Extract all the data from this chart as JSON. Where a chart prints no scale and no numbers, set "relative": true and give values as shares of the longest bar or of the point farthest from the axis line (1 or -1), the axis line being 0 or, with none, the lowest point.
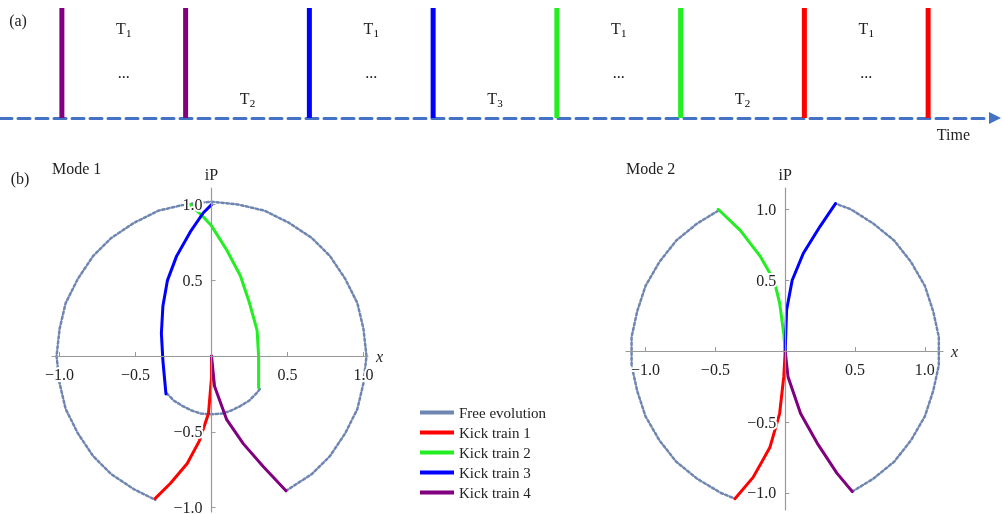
{
  "chart_data": [
    {
      "type": "bar",
      "relative": true,
      "xlabel": "Time",
      "categories": [
        null,
        null,
        null,
        null,
        null,
        null,
        null,
        null
      ],
      "values": [
        1,
        1,
        1,
        1,
        1,
        1,
        1,
        1
      ],
      "colors": [
        "#800080",
        "#800080",
        "#0000ff",
        "#0000ff",
        "#22ee22",
        "#22ee22",
        "#ff0000",
        "#ff0000"
      ],
      "annotations": [
        "(a)",
        "T$_{1}$",
        "...",
        "T$_{2}$",
        "T$_{1}$",
        "...",
        "T$_{3}$",
        "T$_{1}$",
        "...",
        "T$_{2}$",
        "T$_{1}$",
        "..."
      ]
    },
    {
      "type": "line",
      "title": "Mode 1",
      "xlabel": "x",
      "ylabel": "iP",
      "annotations": [
        "(b)"
      ],
      "xlim": [
        -1.05,
        1.03
      ],
      "ylim": [
        -1.03,
        1.11
      ],
      "xticks": [
        {
          "value": -1,
          "label": "−1.0"
        },
        {
          "value": -0.5,
          "label": "−0.5"
        },
        {
          "value": 0.5,
          "label": "0.5"
        },
        {
          "value": 1,
          "label": "1.0"
        }
      ],
      "yticks": [
        {
          "value": -1,
          "label": "−1.0"
        },
        {
          "value": -0.5,
          "label": "−0.5"
        },
        {
          "value": 0.5,
          "label": "0.5"
        },
        {
          "value": 1,
          "label": "1.0"
        }
      ],
      "grid": false,
      "legend": "bottom right",
      "series": [
        {
          "name": "Free evolution",
          "color": "#6f86b0",
          "line_style": "dotted",
          "x": [
            0.49,
            0.66,
            0.78,
            0.88,
            0.96,
            1.0,
            1.02,
            1.0,
            0.96,
            0.88,
            0.78,
            0.66,
            0.51,
            0.35,
            0.18,
            0,
            -0.18,
            -0.35,
            -0.51,
            -0.66,
            -0.78,
            -0.88,
            -0.96,
            -1.0,
            -1.02,
            -1.0,
            -0.96,
            -0.88,
            -0.78,
            -0.66,
            -0.51,
            -0.37,
            -0.3,
            -0.295,
            -0.247,
            -0.19,
            -0.13,
            -0.07,
            0,
            0.07,
            0.13,
            0.19,
            0.247,
            0.295,
            0.32
          ],
          "values": [
            -0.89,
            -0.78,
            -0.66,
            -0.51,
            -0.35,
            -0.18,
            0,
            0.18,
            0.35,
            0.51,
            0.66,
            0.78,
            0.88,
            0.96,
            1.0,
            1.02,
            1.0,
            0.96,
            0.88,
            0.78,
            0.66,
            0.51,
            0.35,
            0.18,
            0,
            -0.18,
            -0.35,
            -0.51,
            -0.66,
            -0.78,
            -0.88,
            -0.95,
            null,
            -0.247,
            -0.295,
            -0.33,
            -0.36,
            -0.38,
            -0.385,
            -0.38,
            -0.36,
            -0.33,
            -0.295,
            -0.247,
            -0.215
          ]
        },
        {
          "name": "Kick train 1",
          "color": "#ff0000",
          "x": [
            0,
            0,
            -0.02,
            -0.08,
            -0.16,
            -0.27,
            -0.37
          ],
          "values": [
            0,
            -0.14,
            -0.38,
            -0.56,
            -0.71,
            -0.84,
            -0.94
          ]
        },
        {
          "name": "Kick train 2",
          "color": "#22ee22",
          "x": [
            -0.14,
            -0.055,
            0,
            0.1,
            0.19,
            0.25,
            0.3,
            0.31,
            0.31
          ],
          "values": [
            1.0,
            0.92,
            0.86,
            0.7,
            0.53,
            0.35,
            0.17,
            0,
            -0.21
          ]
        },
        {
          "name": "Kick train 3",
          "color": "#0000ff",
          "x": [
            0,
            -0.055,
            -0.14,
            -0.23,
            -0.29,
            -0.32,
            -0.33,
            -0.32,
            -0.31,
            -0.3
          ],
          "values": [
            1.0,
            0.945,
            0.82,
            0.66,
            0.5,
            0.33,
            0.15,
            -0.03,
            -0.14,
            -0.25
          ]
        },
        {
          "name": "Kick train 4",
          "color": "#800080",
          "x": [
            0,
            0.02,
            0.1,
            0.21,
            0.34,
            0.49
          ],
          "values": [
            0,
            -0.2,
            -0.42,
            -0.58,
            -0.73,
            -0.89
          ]
        }
      ]
    },
    {
      "type": "line",
      "title": "Mode 2",
      "xlabel": "x",
      "ylabel": "iP",
      "xlim": [
        -1.14,
        1.13
      ],
      "ylim": [
        -1.12,
        1.15
      ],
      "xticks": [
        {
          "value": -1,
          "label": "−1.0"
        },
        {
          "value": -0.5,
          "label": "−0.5"
        },
        {
          "value": 0.5,
          "label": "0.5"
        },
        {
          "value": 1,
          "label": "1.0"
        }
      ],
      "yticks": [
        {
          "value": -1,
          "label": "−1.0"
        },
        {
          "value": -0.5,
          "label": "−0.5"
        },
        {
          "value": 0.5,
          "label": "0.5"
        },
        {
          "value": 1,
          "label": "1.0"
        }
      ],
      "grid": false,
      "series": [
        {
          "color": "#6f86b0",
          "line_style": "dotted",
          "x": [
            0.48,
            0.63,
            0.78,
            0.9,
            1.0,
            1.06,
            1.1,
            1.1,
            1.06,
            1.0,
            0.9,
            0.78,
            0.63,
            0.47,
            0.36,
            0,
            -0.48,
            -0.63,
            -0.78,
            -0.9,
            -1.0,
            -1.06,
            -1.1,
            -1.1,
            -1.06,
            -1.0,
            -0.9,
            -0.78,
            -0.63,
            -0.46,
            -0.36
          ],
          "values": [
            -0.99,
            -0.9,
            -0.78,
            -0.63,
            -0.46,
            -0.28,
            -0.1,
            0.1,
            0.28,
            0.46,
            0.63,
            0.78,
            0.9,
            1.0,
            1.04,
            null,
            0.99,
            0.9,
            0.78,
            0.63,
            0.46,
            0.28,
            0.1,
            -0.1,
            -0.28,
            -0.46,
            -0.63,
            -0.78,
            -0.9,
            -1.0,
            -1.04
          ]
        },
        {
          "color": "#ff0000",
          "x": [
            0,
            -0.01,
            -0.04,
            -0.11,
            -0.23,
            -0.36
          ],
          "values": [
            0,
            -0.18,
            -0.44,
            -0.68,
            -0.89,
            -1.04
          ]
        },
        {
          "color": "#22ee22",
          "x": [
            -0.48,
            -0.32,
            -0.18,
            -0.08,
            -0.04,
            -0.01,
            0
          ],
          "values": [
            1.0,
            0.85,
            0.67,
            0.5,
            0.34,
            0.12,
            0
          ]
        },
        {
          "color": "#0000ff",
          "x": [
            0.36,
            0.25,
            0.13,
            0.05,
            0.01,
            0
          ],
          "values": [
            1.04,
            0.88,
            0.69,
            0.5,
            0.29,
            0
          ]
        },
        {
          "color": "#800080",
          "x": [
            0,
            0.02,
            0.11,
            0.23,
            0.37,
            0.48
          ],
          "values": [
            0,
            -0.18,
            -0.44,
            -0.65,
            -0.86,
            -0.99
          ]
        }
      ]
    }
  ]
}
